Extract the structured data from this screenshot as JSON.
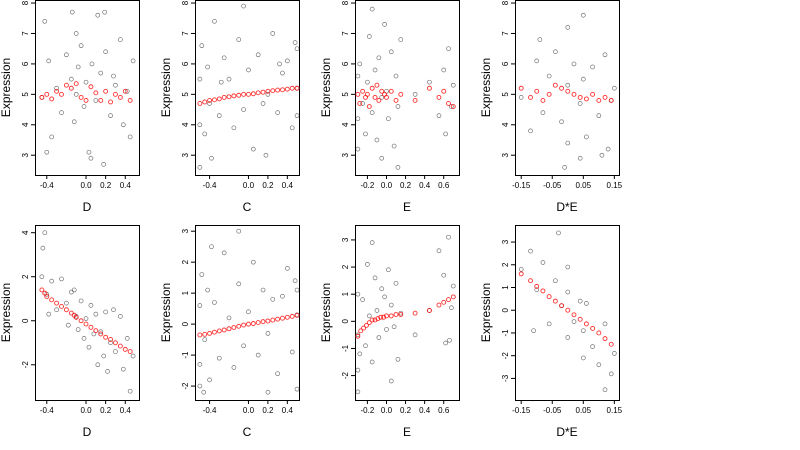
{
  "chart_data": [
    {
      "type": "scatter",
      "xlabel": "D",
      "ylabel": "Expression",
      "xlim": [
        -0.52,
        0.54
      ],
      "ylim": [
        2.35,
        8.1
      ],
      "xticks": [
        -0.4,
        0.0,
        0.2,
        0.4
      ],
      "xtick_labels": [
        "-0.4",
        "0.0",
        "0.2",
        "0.4"
      ],
      "yticks": [
        3,
        4,
        5,
        6,
        7,
        8
      ],
      "ytick_labels": [
        "3",
        "4",
        "5",
        "6",
        "7",
        "8"
      ],
      "observed_color": "#000000",
      "fitted_color": "#ff0000",
      "observed": {
        "x": [
          -0.45,
          -0.42,
          -0.38,
          -0.35,
          -0.3,
          -0.25,
          -0.2,
          -0.15,
          -0.12,
          -0.1,
          -0.08,
          -0.05,
          -0.02,
          0.0,
          0.03,
          0.06,
          0.1,
          0.12,
          0.15,
          0.18,
          0.2,
          0.25,
          0.3,
          0.35,
          0.38,
          0.42,
          0.45,
          0.48,
          -0.4,
          -0.14,
          0.05,
          0.19,
          -0.1,
          0.28
        ],
        "y": [
          4.9,
          7.4,
          6.1,
          3.6,
          5.2,
          4.4,
          6.3,
          5.5,
          4.1,
          7.0,
          5.9,
          6.6,
          4.6,
          5.4,
          3.1,
          6.0,
          4.8,
          7.6,
          5.7,
          2.7,
          6.4,
          4.3,
          5.3,
          6.8,
          4.0,
          5.1,
          3.6,
          6.1,
          3.1,
          7.7,
          2.9,
          7.7,
          5.0,
          5.6
        ]
      },
      "fitted": {
        "x": [
          -0.45,
          -0.4,
          -0.35,
          -0.3,
          -0.25,
          -0.2,
          -0.15,
          -0.1,
          -0.05,
          0.0,
          0.05,
          0.1,
          0.15,
          0.2,
          0.25,
          0.3,
          0.35,
          0.4,
          0.45
        ],
        "y": [
          4.9,
          5.0,
          4.85,
          5.1,
          5.0,
          5.3,
          5.2,
          5.35,
          4.9,
          4.8,
          5.25,
          5.05,
          4.8,
          5.1,
          4.75,
          5.0,
          4.9,
          5.1,
          4.8
        ]
      }
    },
    {
      "type": "scatter",
      "xlabel": "C",
      "ylabel": "Expression",
      "xlim": [
        -0.55,
        0.52
      ],
      "ylim": [
        2.35,
        8.1
      ],
      "xticks": [
        -0.4,
        0.0,
        0.2,
        0.4
      ],
      "xtick_labels": [
        "-0.4",
        "0.0",
        "0.2",
        "0.4"
      ],
      "yticks": [
        3,
        4,
        5,
        6,
        7,
        8
      ],
      "ytick_labels": [
        "3",
        "4",
        "5",
        "6",
        "7",
        "8"
      ],
      "observed_color": "#000000",
      "fitted_color": "#ff0000",
      "observed": {
        "x": [
          -0.5,
          -0.5,
          -0.5,
          -0.48,
          -0.45,
          -0.42,
          -0.4,
          -0.35,
          -0.3,
          -0.25,
          -0.2,
          -0.15,
          -0.1,
          -0.05,
          0.0,
          0.05,
          0.1,
          0.15,
          0.2,
          0.25,
          0.3,
          0.35,
          0.4,
          0.45,
          0.48,
          0.5,
          0.5,
          0.5,
          -0.38,
          -0.05,
          0.18,
          -0.28,
          0.32
        ],
        "y": [
          4.0,
          5.5,
          2.6,
          6.6,
          3.7,
          5.9,
          4.7,
          7.4,
          4.3,
          6.2,
          5.5,
          3.9,
          6.8,
          4.5,
          5.8,
          3.2,
          6.3,
          4.7,
          5.0,
          7.0,
          4.4,
          5.7,
          6.1,
          3.9,
          6.7,
          5.2,
          4.3,
          6.5,
          2.9,
          7.9,
          3.0,
          5.4,
          6.0
        ]
      },
      "fitted": {
        "x": [
          -0.5,
          -0.45,
          -0.4,
          -0.35,
          -0.3,
          -0.25,
          -0.2,
          -0.15,
          -0.1,
          -0.05,
          0.0,
          0.05,
          0.1,
          0.15,
          0.2,
          0.25,
          0.3,
          0.35,
          0.4,
          0.45,
          0.5
        ],
        "y": [
          4.7,
          4.75,
          4.8,
          4.82,
          4.85,
          4.9,
          4.92,
          4.95,
          4.97,
          5.0,
          5.0,
          5.02,
          5.05,
          5.07,
          5.1,
          5.12,
          5.14,
          5.15,
          5.17,
          5.2,
          5.2
        ]
      }
    },
    {
      "type": "scatter",
      "xlabel": "E",
      "ylabel": "Expression",
      "xlim": [
        -0.33,
        0.76
      ],
      "ylim": [
        2.35,
        8.1
      ],
      "xticks": [
        -0.2,
        0.0,
        0.2,
        0.4,
        0.6
      ],
      "xtick_labels": [
        "-0.2",
        "0.0",
        "0.2",
        "0.4",
        "0.6"
      ],
      "yticks": [
        3,
        4,
        5,
        6,
        7,
        8
      ],
      "ytick_labels": [
        "3",
        "4",
        "5",
        "6",
        "7",
        "8"
      ],
      "observed_color": "#000000",
      "fitted_color": "#ff0000",
      "observed": {
        "x": [
          -0.3,
          -0.3,
          -0.3,
          -0.28,
          -0.25,
          -0.22,
          -0.2,
          -0.18,
          -0.15,
          -0.12,
          -0.1,
          -0.08,
          -0.05,
          -0.02,
          0.0,
          0.02,
          0.05,
          0.08,
          0.1,
          0.12,
          0.15,
          0.3,
          0.45,
          0.55,
          0.6,
          0.62,
          0.65,
          0.68,
          0.7,
          -0.15,
          0.12,
          -0.05
        ],
        "y": [
          4.2,
          5.6,
          3.2,
          6.0,
          4.7,
          3.7,
          5.4,
          6.9,
          4.4,
          5.8,
          3.5,
          6.2,
          4.9,
          7.3,
          5.1,
          4.2,
          6.4,
          3.3,
          5.6,
          4.6,
          6.8,
          5.0,
          5.4,
          4.3,
          5.8,
          3.7,
          6.5,
          4.6,
          5.3,
          7.8,
          2.6,
          2.9
        ]
      },
      "fitted": {
        "x": [
          -0.3,
          -0.28,
          -0.25,
          -0.22,
          -0.2,
          -0.18,
          -0.15,
          -0.12,
          -0.1,
          -0.08,
          -0.05,
          -0.02,
          0.0,
          0.05,
          0.1,
          0.15,
          0.3,
          0.45,
          0.55,
          0.6,
          0.65,
          0.7
        ],
        "y": [
          5.0,
          4.7,
          5.1,
          4.9,
          5.0,
          4.6,
          5.2,
          4.9,
          5.3,
          4.8,
          5.1,
          5.0,
          4.9,
          5.1,
          4.8,
          5.0,
          4.8,
          5.2,
          4.9,
          5.1,
          4.7,
          4.6
        ]
      }
    },
    {
      "type": "scatter",
      "xlabel": "D*E",
      "ylabel": "Expression",
      "xlim": [
        -0.17,
        0.165
      ],
      "ylim": [
        2.35,
        8.1
      ],
      "xticks": [
        -0.15,
        -0.05,
        0.05,
        0.15
      ],
      "xtick_labels": [
        "-0.15",
        "-0.05",
        "0.05",
        "0.15"
      ],
      "yticks": [
        3,
        4,
        5,
        6,
        7,
        8
      ],
      "ytick_labels": [
        "3",
        "4",
        "5",
        "6",
        "7",
        "8"
      ],
      "observed_color": "#000000",
      "fitted_color": "#ff0000",
      "observed": {
        "x": [
          -0.15,
          -0.12,
          -0.1,
          -0.08,
          -0.06,
          -0.04,
          -0.02,
          0.0,
          0.0,
          0.0,
          0.02,
          0.04,
          0.05,
          0.05,
          0.06,
          0.08,
          0.1,
          0.12,
          0.14,
          0.15,
          -0.01,
          0.04,
          0.11,
          -0.09,
          0.13
        ],
        "y": [
          4.9,
          3.8,
          6.1,
          4.4,
          5.6,
          6.4,
          4.1,
          5.3,
          7.2,
          3.4,
          6.0,
          4.7,
          5.5,
          7.6,
          3.6,
          5.9,
          4.3,
          6.3,
          4.8,
          5.2,
          2.6,
          2.9,
          3.0,
          6.8,
          3.2
        ]
      },
      "fitted": {
        "x": [
          -0.15,
          -0.12,
          -0.1,
          -0.08,
          -0.06,
          -0.04,
          -0.02,
          0.0,
          0.02,
          0.04,
          0.06,
          0.08,
          0.1,
          0.12,
          0.14
        ],
        "y": [
          5.2,
          4.9,
          5.1,
          4.8,
          5.0,
          5.3,
          5.2,
          5.1,
          5.0,
          4.9,
          4.85,
          5.0,
          4.8,
          4.9,
          4.8
        ]
      }
    },
    {
      "type": "scatter",
      "xlabel": "D",
      "ylabel": "Expression",
      "xlim": [
        -0.52,
        0.54
      ],
      "ylim": [
        -3.6,
        4.35
      ],
      "xticks": [
        -0.4,
        0.0,
        0.2,
        0.4
      ],
      "xtick_labels": [
        "-0.4",
        "0.0",
        "0.2",
        "0.4"
      ],
      "yticks": [
        -2,
        0,
        2,
        4
      ],
      "ytick_labels": [
        "-2",
        "0",
        "2",
        "4"
      ],
      "observed_color": "#000000",
      "fitted_color": "#ff0000",
      "observed": {
        "x": [
          -0.45,
          -0.42,
          -0.4,
          -0.38,
          -0.35,
          -0.3,
          -0.25,
          -0.2,
          -0.18,
          -0.15,
          -0.12,
          -0.1,
          -0.08,
          -0.05,
          -0.02,
          0.0,
          0.03,
          0.05,
          0.08,
          0.1,
          0.12,
          0.15,
          0.18,
          0.2,
          0.22,
          0.25,
          0.3,
          0.35,
          0.38,
          0.42,
          0.45,
          0.48,
          -0.44,
          0.28
        ],
        "y": [
          2.0,
          4.0,
          1.2,
          0.3,
          1.8,
          0.5,
          1.9,
          0.8,
          -0.2,
          1.3,
          1.4,
          0.2,
          -0.4,
          0.9,
          -0.8,
          0.1,
          -1.2,
          0.7,
          -0.6,
          0.3,
          -2.0,
          -0.5,
          -1.6,
          0.4,
          -2.3,
          -1.0,
          -1.4,
          0.2,
          -2.2,
          -0.8,
          -3.2,
          -1.6,
          3.3,
          0.5
        ]
      },
      "fitted": {
        "x": [
          -0.45,
          -0.42,
          -0.4,
          -0.35,
          -0.3,
          -0.25,
          -0.2,
          -0.15,
          -0.12,
          -0.1,
          -0.05,
          0.0,
          0.05,
          0.1,
          0.15,
          0.2,
          0.25,
          0.3,
          0.35,
          0.4,
          0.45
        ],
        "y": [
          1.4,
          1.25,
          1.1,
          0.95,
          0.8,
          0.65,
          0.5,
          0.35,
          0.25,
          0.15,
          0.0,
          -0.15,
          -0.3,
          -0.45,
          -0.6,
          -0.75,
          -0.85,
          -1.0,
          -1.15,
          -1.3,
          -1.4
        ]
      }
    },
    {
      "type": "scatter",
      "xlabel": "C",
      "ylabel": "Expression",
      "xlim": [
        -0.55,
        0.52
      ],
      "ylim": [
        -2.45,
        3.2
      ],
      "xticks": [
        -0.4,
        0.0,
        0.2,
        0.4
      ],
      "xtick_labels": [
        "-0.4",
        "0.0",
        "0.2",
        "0.4"
      ],
      "yticks": [
        -2,
        -1,
        0,
        1,
        2,
        3
      ],
      "ytick_labels": [
        "-2",
        "-1",
        "0",
        "1",
        "2",
        "3"
      ],
      "observed_color": "#000000",
      "fitted_color": "#ff0000",
      "observed": {
        "x": [
          -0.5,
          -0.5,
          -0.5,
          -0.48,
          -0.45,
          -0.42,
          -0.4,
          -0.35,
          -0.3,
          -0.25,
          -0.2,
          -0.15,
          -0.1,
          -0.05,
          0.0,
          0.05,
          0.1,
          0.15,
          0.2,
          0.25,
          0.3,
          0.35,
          0.4,
          0.45,
          0.48,
          0.5,
          0.5,
          0.5,
          -0.38,
          -0.1,
          0.2,
          -0.46
        ],
        "y": [
          0.6,
          -1.3,
          -2.0,
          1.6,
          -0.5,
          1.1,
          -1.8,
          0.7,
          -1.1,
          2.3,
          0.2,
          -1.4,
          1.3,
          -0.7,
          0.4,
          2.0,
          -1.0,
          1.1,
          -0.3,
          0.8,
          -1.6,
          0.9,
          1.8,
          -0.9,
          1.4,
          -2.1,
          0.3,
          1.1,
          2.5,
          3.0,
          -2.2,
          -2.2
        ]
      },
      "fitted": {
        "x": [
          -0.5,
          -0.45,
          -0.4,
          -0.35,
          -0.3,
          -0.25,
          -0.2,
          -0.15,
          -0.1,
          -0.05,
          0.0,
          0.05,
          0.1,
          0.15,
          0.2,
          0.25,
          0.3,
          0.35,
          0.4,
          0.45,
          0.5
        ],
        "y": [
          -0.35,
          -0.33,
          -0.3,
          -0.26,
          -0.22,
          -0.19,
          -0.15,
          -0.11,
          -0.07,
          -0.03,
          0.0,
          0.02,
          0.05,
          0.08,
          0.1,
          0.13,
          0.16,
          0.19,
          0.22,
          0.25,
          0.28
        ]
      }
    },
    {
      "type": "scatter",
      "xlabel": "E",
      "ylabel": "Expression",
      "xlim": [
        -0.33,
        0.76
      ],
      "ylim": [
        -2.9,
        3.55
      ],
      "xticks": [
        -0.2,
        0.0,
        0.2,
        0.4,
        0.6
      ],
      "xtick_labels": [
        "-0.2",
        "0.0",
        "0.2",
        "0.4",
        "0.6"
      ],
      "yticks": [
        -2,
        -1,
        0,
        1,
        2,
        3
      ],
      "ytick_labels": [
        "-2",
        "-1",
        "0",
        "1",
        "2",
        "3"
      ],
      "observed_color": "#000000",
      "fitted_color": "#ff0000",
      "observed": {
        "x": [
          -0.3,
          -0.3,
          -0.3,
          -0.28,
          -0.25,
          -0.22,
          -0.2,
          -0.18,
          -0.15,
          -0.12,
          -0.1,
          -0.08,
          -0.05,
          -0.02,
          0.0,
          0.02,
          0.05,
          0.08,
          0.1,
          0.12,
          0.15,
          0.3,
          0.45,
          0.55,
          0.6,
          0.62,
          0.65,
          0.68,
          0.7,
          -0.15,
          0.05,
          -0.3,
          0.66
        ],
        "y": [
          -0.5,
          -1.8,
          1.0,
          -1.2,
          0.8,
          -0.9,
          2.1,
          0.2,
          -1.5,
          1.6,
          0.4,
          -0.6,
          1.2,
          0.9,
          -0.3,
          1.9,
          0.6,
          -0.2,
          1.4,
          -1.4,
          0.3,
          -0.5,
          0.4,
          2.6,
          1.7,
          -0.8,
          3.1,
          0.5,
          1.3,
          2.9,
          -2.2,
          -2.6,
          -0.7
        ]
      },
      "fitted": {
        "x": [
          -0.3,
          -0.27,
          -0.24,
          -0.21,
          -0.18,
          -0.15,
          -0.12,
          -0.09,
          -0.06,
          -0.03,
          0.0,
          0.05,
          0.1,
          0.15,
          0.3,
          0.45,
          0.55,
          0.6,
          0.65,
          0.7
        ],
        "y": [
          -0.55,
          -0.35,
          -0.25,
          -0.15,
          -0.05,
          0.05,
          0.05,
          0.1,
          0.15,
          0.15,
          0.2,
          0.2,
          0.25,
          0.25,
          0.3,
          0.4,
          0.6,
          0.7,
          0.8,
          0.9
        ]
      }
    },
    {
      "type": "scatter",
      "xlabel": "D*E",
      "ylabel": "Expression",
      "xlim": [
        -0.17,
        0.165
      ],
      "ylim": [
        -3.95,
        3.75
      ],
      "xticks": [
        -0.15,
        -0.05,
        0.05,
        0.15
      ],
      "xtick_labels": [
        "-0.15",
        "-0.05",
        "0.05",
        "0.15"
      ],
      "yticks": [
        -3,
        -2,
        -1,
        0,
        1,
        2,
        3
      ],
      "ytick_labels": [
        "-3",
        "-2",
        "-1",
        "0",
        "1",
        "2",
        "3"
      ],
      "observed_color": "#000000",
      "fitted_color": "#ff0000",
      "observed": {
        "x": [
          -0.15,
          -0.12,
          -0.1,
          -0.08,
          -0.06,
          -0.04,
          -0.02,
          0.0,
          0.0,
          0.0,
          0.02,
          0.04,
          0.05,
          0.05,
          0.06,
          0.08,
          0.1,
          0.12,
          0.14,
          0.15,
          -0.03,
          0.12,
          -0.11
        ],
        "y": [
          1.8,
          2.6,
          0.9,
          2.1,
          -0.6,
          1.3,
          0.2,
          -1.2,
          0.8,
          1.9,
          -0.5,
          0.4,
          -2.1,
          -0.9,
          0.3,
          -1.6,
          -2.4,
          -0.6,
          -2.8,
          -1.9,
          3.4,
          -3.5,
          -0.9
        ]
      },
      "fitted": {
        "x": [
          -0.15,
          -0.12,
          -0.1,
          -0.08,
          -0.06,
          -0.04,
          -0.02,
          0.0,
          0.02,
          0.04,
          0.06,
          0.08,
          0.1,
          0.12,
          0.14
        ],
        "y": [
          1.6,
          1.3,
          1.05,
          0.85,
          0.6,
          0.4,
          0.2,
          0.0,
          -0.2,
          -0.4,
          -0.6,
          -0.8,
          -1.0,
          -1.25,
          -1.5
        ]
      }
    }
  ]
}
